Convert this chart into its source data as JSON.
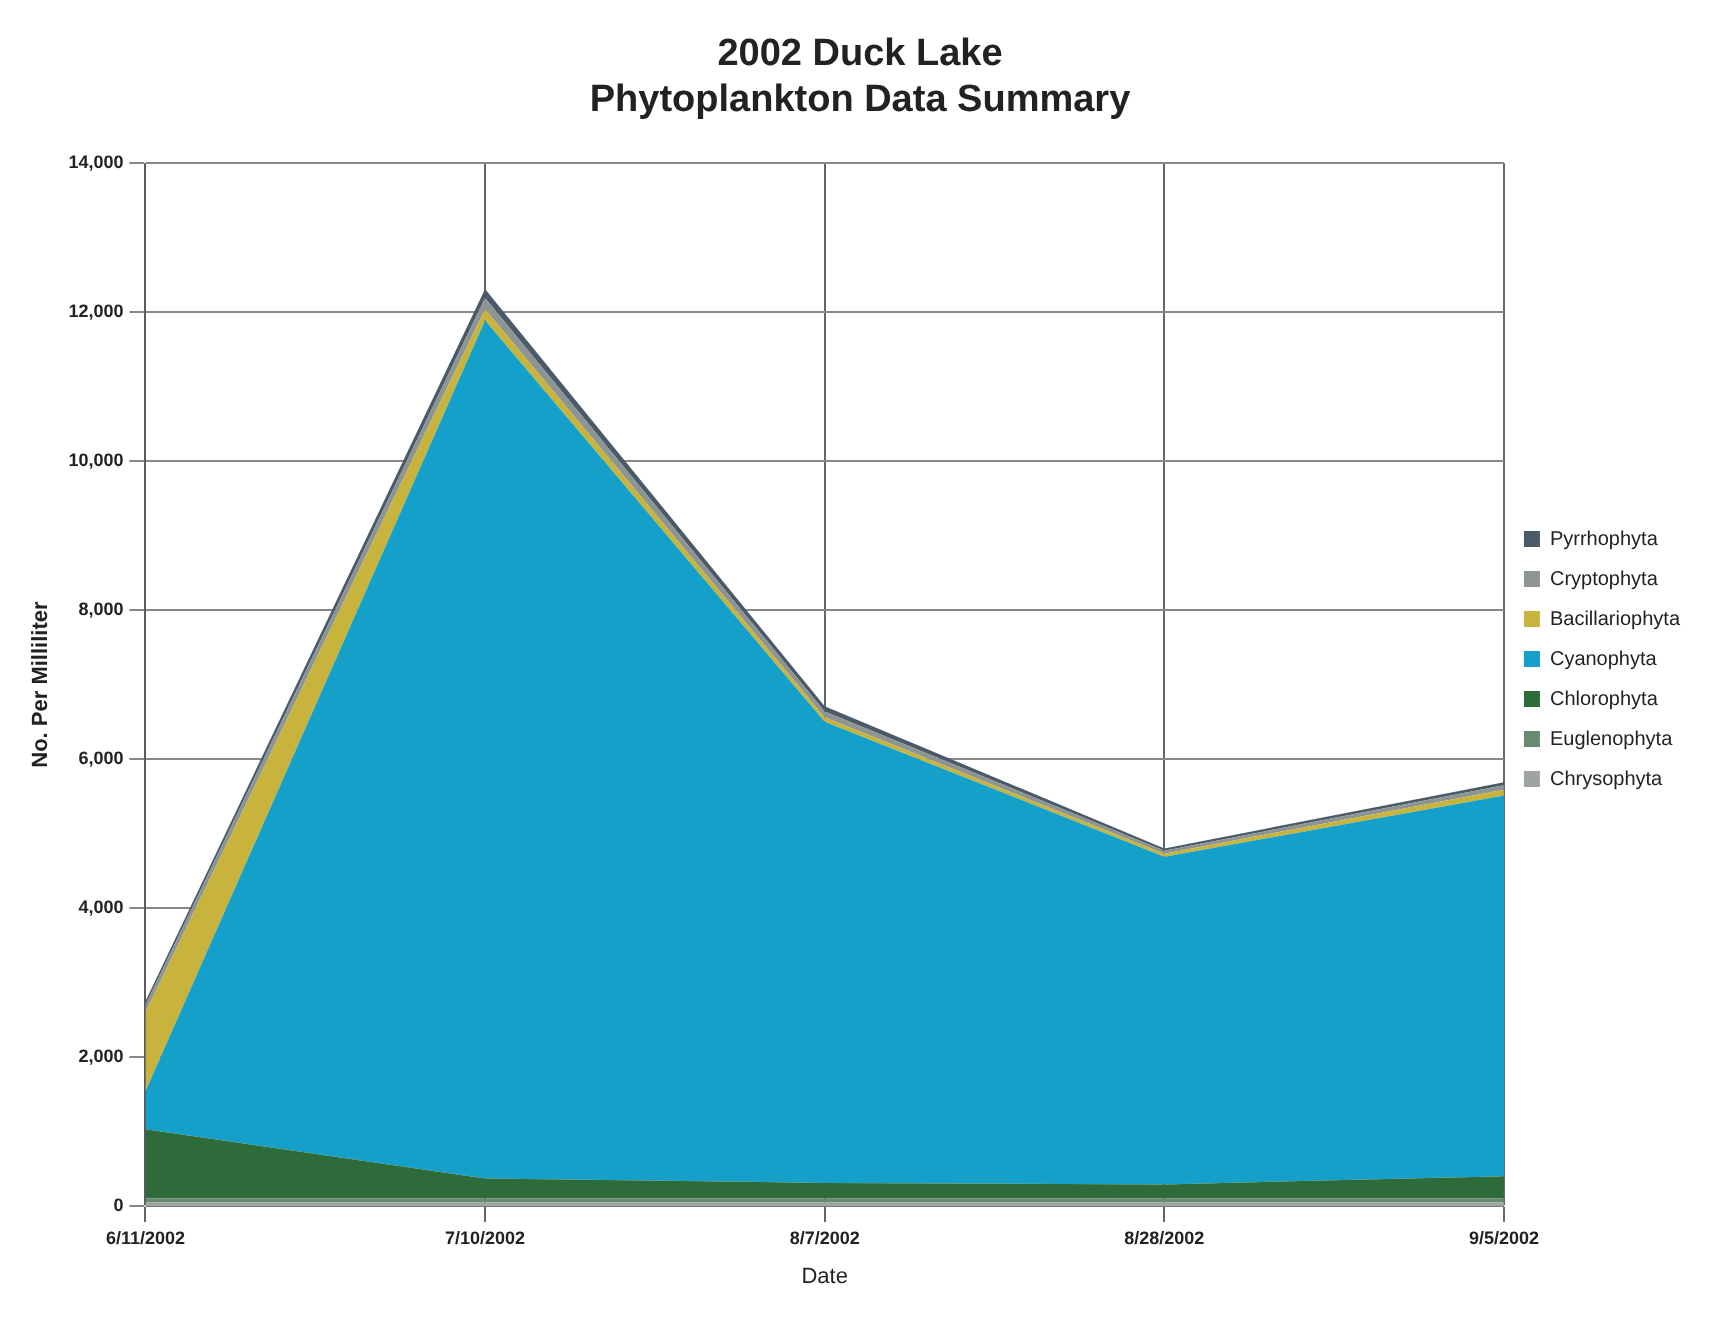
{
  "chart_data": {
    "type": "area",
    "title": "2002 Duck Lake\nPhytoplankton Data Summary",
    "xlabel": "Date",
    "ylabel": "No. Per Milliliter",
    "categories": [
      "6/11/2002",
      "7/10/2002",
      "8/7/2002",
      "8/28/2002",
      "9/5/2002"
    ],
    "stacked": true,
    "series": [
      {
        "name": "Chrysophyta",
        "color": "#a0a4a0",
        "values": [
          50,
          50,
          50,
          50,
          50
        ]
      },
      {
        "name": "Euglenophyta",
        "color": "#6a8a70",
        "values": [
          50,
          50,
          50,
          50,
          50
        ]
      },
      {
        "name": "Chlorophyta",
        "color": "#2e6b3a",
        "values": [
          930,
          270,
          210,
          190,
          300
        ]
      },
      {
        "name": "Cyanophyta",
        "color": "#14a0c8",
        "values": [
          510,
          11520,
          6190,
          4400,
          5110
        ]
      },
      {
        "name": "Bacillariophyta",
        "color": "#c8b43c",
        "values": [
          1060,
          150,
          60,
          40,
          80
        ]
      },
      {
        "name": "Cryptophyta",
        "color": "#8c9494",
        "values": [
          100,
          150,
          80,
          40,
          60
        ]
      },
      {
        "name": "Pyrrhophyta",
        "color": "#4a5a68",
        "values": [
          50,
          120,
          70,
          30,
          40
        ]
      }
    ],
    "ylim": [
      0,
      14000
    ],
    "yticks": [
      0,
      {
        "value": 2000,
        "label": "2,000"
      },
      {
        "value": 4000,
        "label": "4,000"
      },
      {
        "value": 6000,
        "label": "6,000"
      },
      {
        "value": 8000,
        "label": "8,000"
      },
      {
        "value": 10000,
        "label": "10,000"
      },
      {
        "value": 12000,
        "label": "12,000"
      },
      {
        "value": 14000,
        "label": "14,000"
      }
    ],
    "grid": true,
    "legend": "right"
  }
}
